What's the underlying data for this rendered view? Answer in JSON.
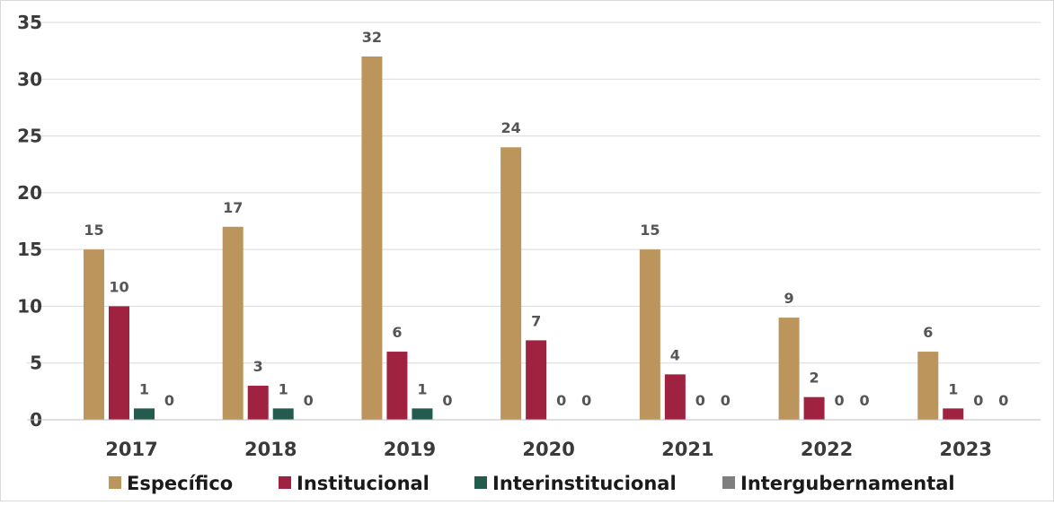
{
  "chart_data": {
    "type": "bar",
    "categories": [
      "2017",
      "2018",
      "2019",
      "2020",
      "2021",
      "2022",
      "2023"
    ],
    "series": [
      {
        "name": "Específico",
        "color": "#bc955c",
        "values": [
          15,
          17,
          32,
          24,
          15,
          9,
          6
        ]
      },
      {
        "name": "Institucional",
        "color": "#9f2241",
        "values": [
          10,
          3,
          6,
          7,
          4,
          2,
          1
        ]
      },
      {
        "name": "Interinstitucional",
        "color": "#235b4e",
        "values": [
          1,
          1,
          1,
          0,
          0,
          0,
          0
        ]
      },
      {
        "name": "Intergubernamental",
        "color": "#7f7f7f",
        "values": [
          0,
          0,
          0,
          0,
          0,
          0,
          0
        ]
      }
    ],
    "title": "",
    "xlabel": "",
    "ylabel": "",
    "ylim": [
      0,
      35
    ],
    "yticks": [
      0,
      5,
      10,
      15,
      20,
      25,
      30,
      35
    ],
    "grid": true,
    "legend_position": "bottom"
  }
}
